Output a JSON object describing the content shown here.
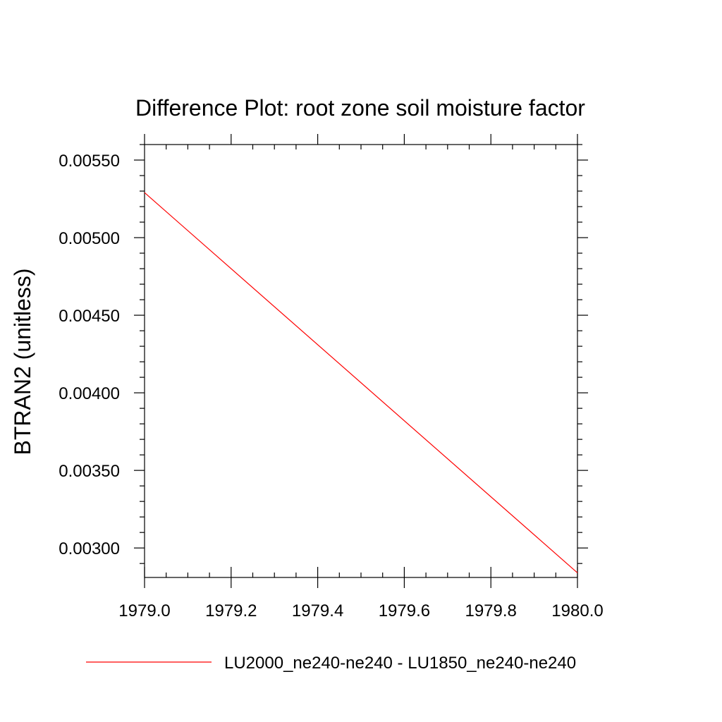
{
  "chart_data": {
    "type": "line",
    "title": "Difference Plot: root zone soil moisture factor",
    "xlabel": "",
    "ylabel": "BTRAN2  (unitless)",
    "xlim": [
      1979.0,
      1980.0
    ],
    "ylim": [
      0.00281,
      0.0056
    ],
    "x_ticks": [
      1979.0,
      1979.2,
      1979.4,
      1979.6,
      1979.8,
      1980.0
    ],
    "x_tick_labels": [
      "1979.0",
      "1979.2",
      "1979.4",
      "1979.6",
      "1979.8",
      "1980.0"
    ],
    "y_ticks": [
      0.003,
      0.0035,
      0.004,
      0.0045,
      0.005,
      0.0055
    ],
    "y_tick_labels": [
      "0.00300",
      "0.00350",
      "0.00400",
      "0.00450",
      "0.00500",
      "0.00550"
    ],
    "grid": false,
    "legend_position": "bottom",
    "series": [
      {
        "name": "LU2000_ne240-ne240 - LU1850_ne240-ne240",
        "color": "#ff0000",
        "x": [
          1979.0,
          1980.0
        ],
        "y": [
          0.00529,
          0.00284
        ]
      }
    ]
  }
}
